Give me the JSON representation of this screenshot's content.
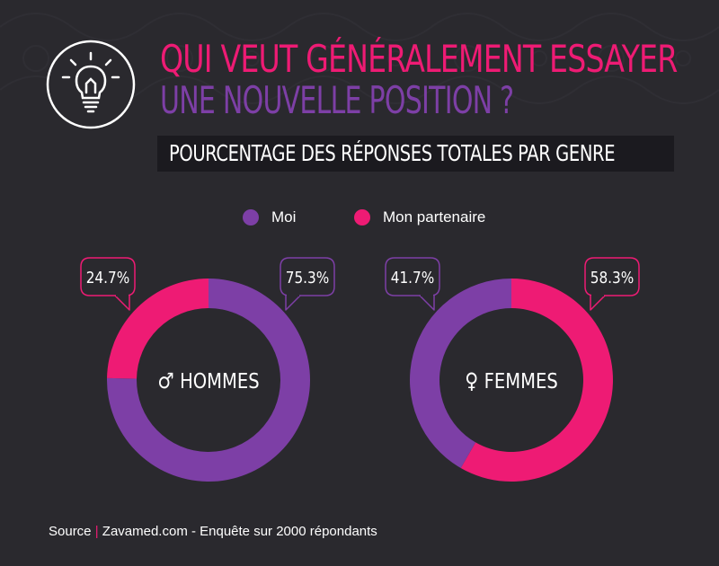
{
  "header": {
    "title_line1": "QUI VEUT GÉNÉRALEMENT ESSAYER",
    "title_line2": "UNE NOUVELLE POSITION ?",
    "subtitle": "POURCENTAGE DES RÉPONSES TOTALES PAR GENRE",
    "icon": "lightbulb-icon"
  },
  "colors": {
    "background": "#2a292e",
    "moi": "#7d3fa6",
    "partenaire": "#ee1b74",
    "title_accent": "#ee1b74",
    "title_secondary": "#7d3fa6"
  },
  "legend": {
    "items": [
      {
        "label": "Moi",
        "color": "#7d3fa6"
      },
      {
        "label": "Mon partenaire",
        "color": "#ee1b74"
      }
    ]
  },
  "chart_data": [
    {
      "type": "pie",
      "title": "HOMMES",
      "symbol": "♂",
      "series": [
        {
          "name": "Moi",
          "value": 75.3,
          "label": "75.3%"
        },
        {
          "name": "Mon partenaire",
          "value": 24.7,
          "label": "24.7%"
        }
      ]
    },
    {
      "type": "pie",
      "title": "FEMMES",
      "symbol": "♀",
      "series": [
        {
          "name": "Moi",
          "value": 41.7,
          "label": "41.7%"
        },
        {
          "name": "Mon partenaire",
          "value": 58.3,
          "label": "58.3%"
        }
      ]
    }
  ],
  "footer": {
    "source_label": "Source",
    "separator": "|",
    "source_text": "Zavamed.com - Enquête sur 2000 répondants"
  }
}
